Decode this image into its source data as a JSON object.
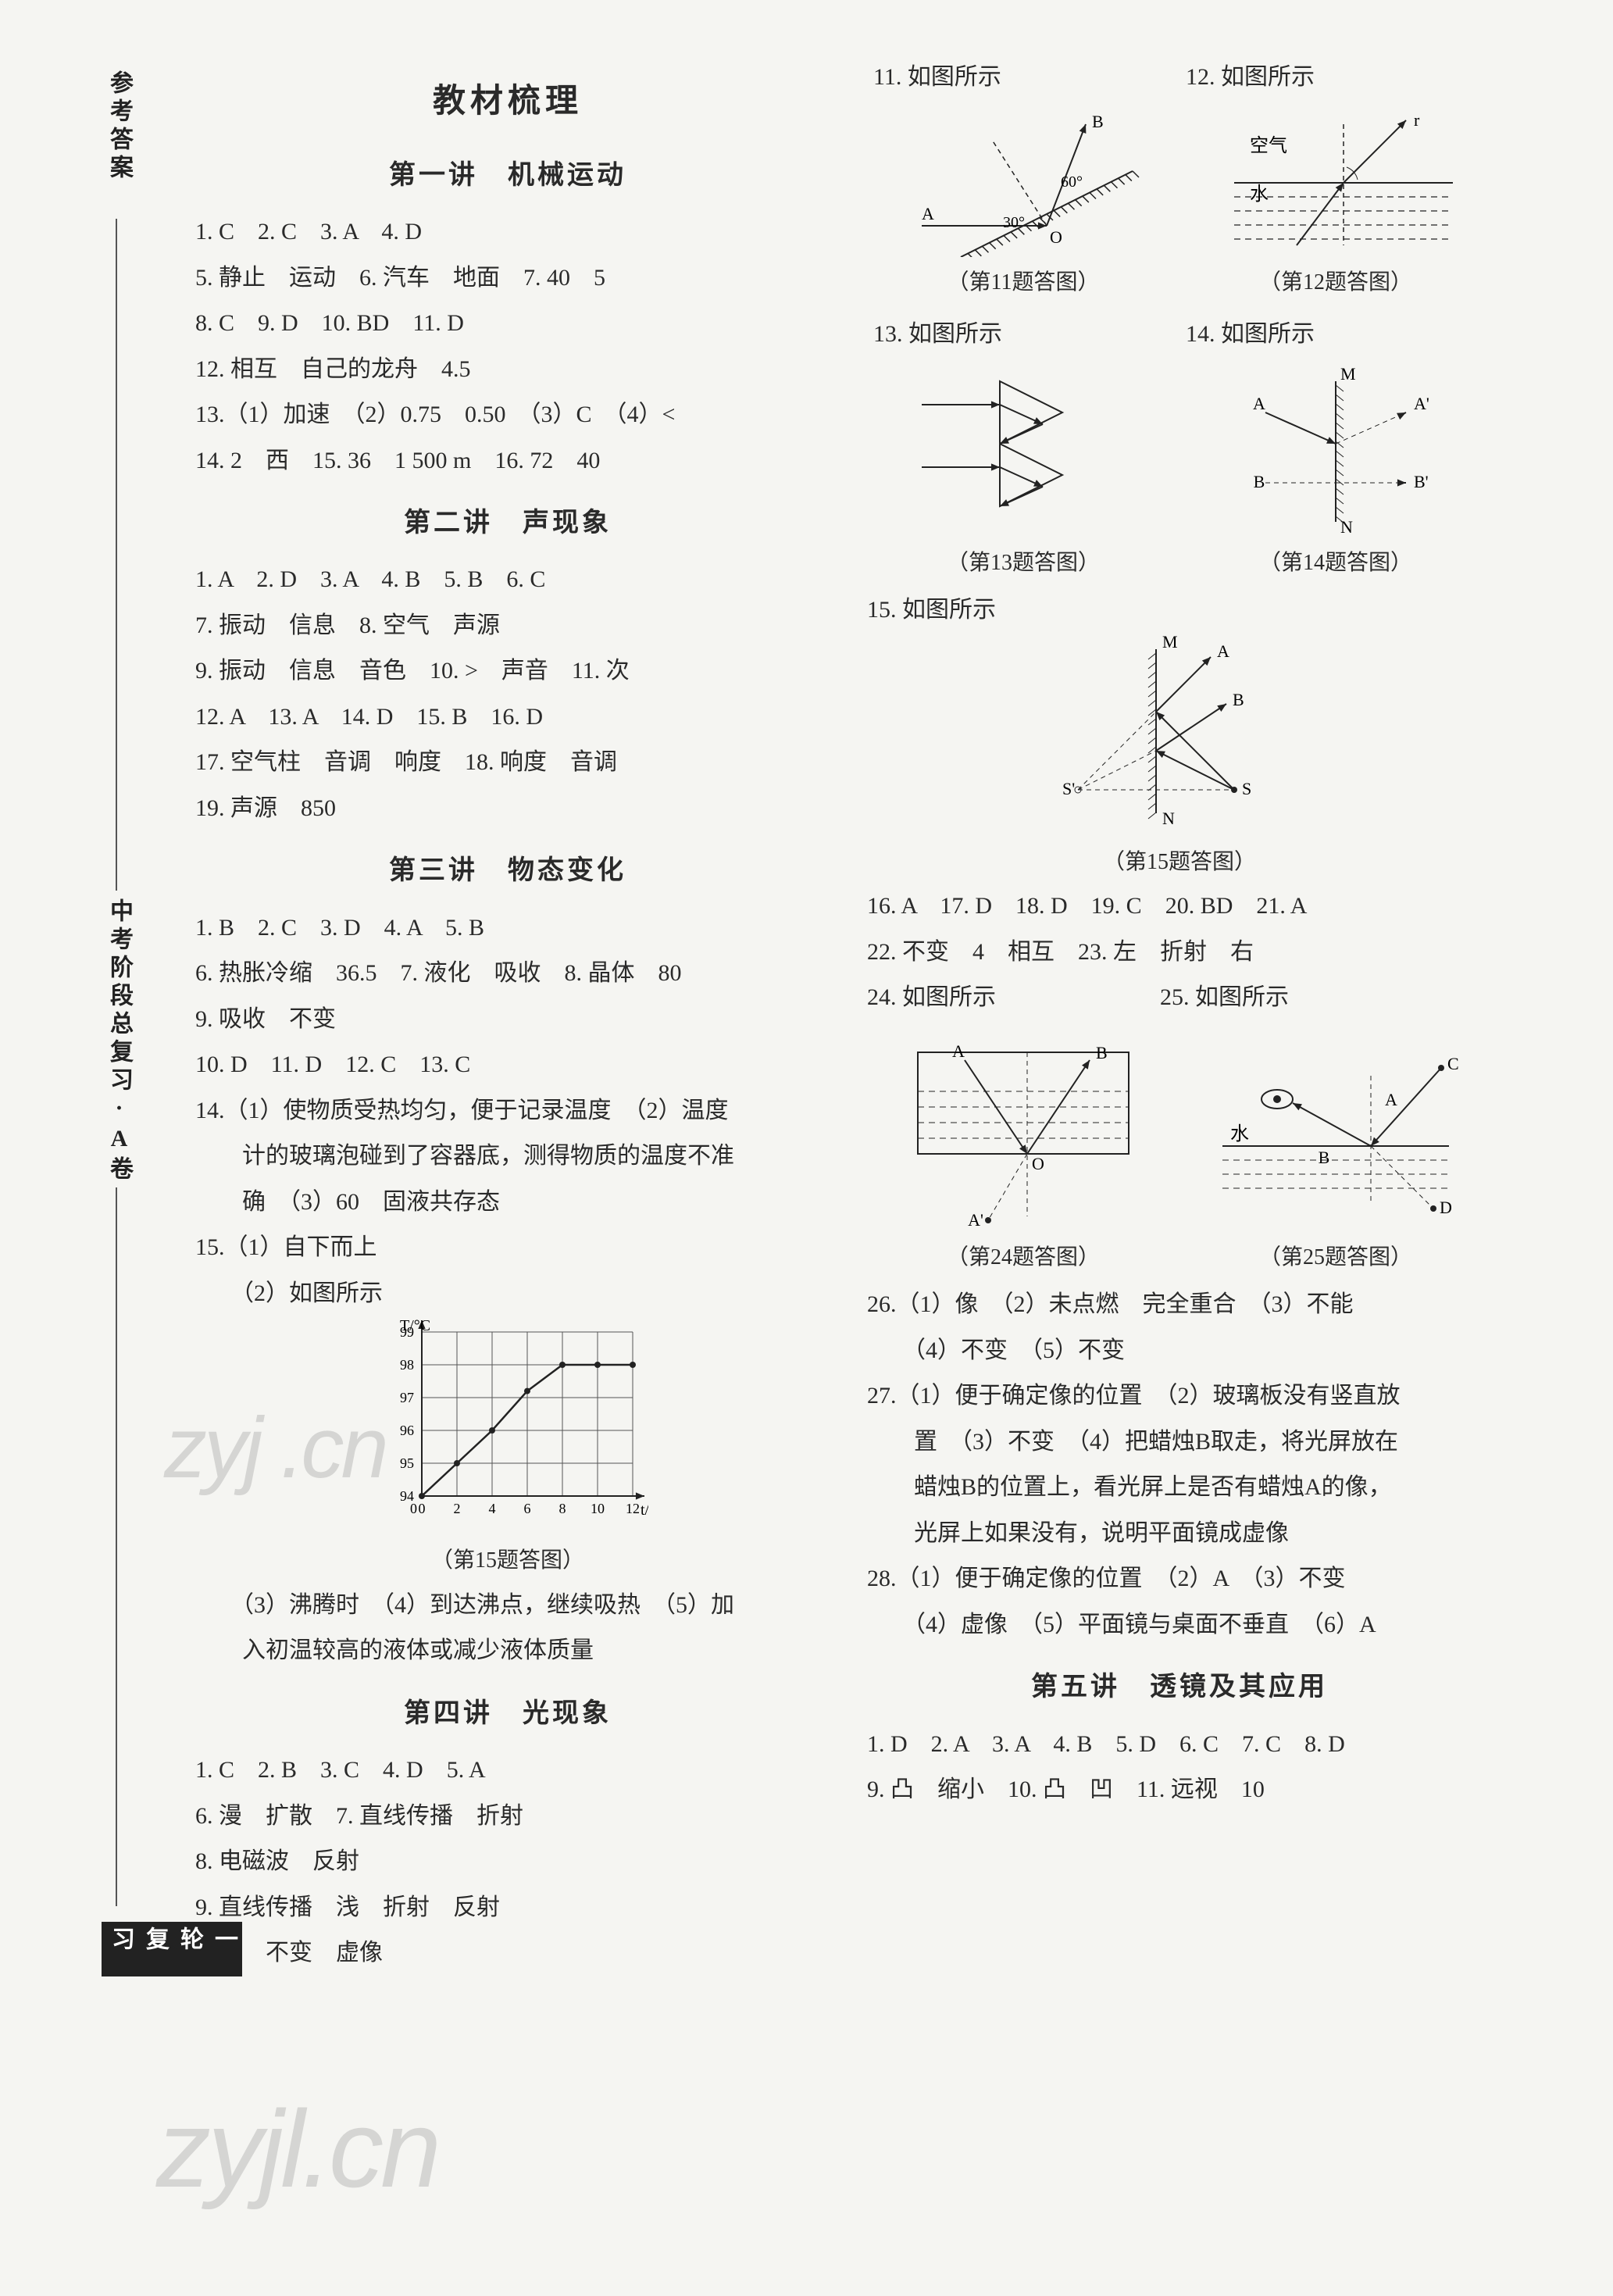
{
  "sidebar": {
    "top": "参考答案",
    "mid": "中考阶段总复习·A卷",
    "bot": "一轮复习"
  },
  "mainTitle": "教材梳理",
  "sections": {
    "s1": {
      "title": "第一讲　机械运动",
      "lines": [
        "1. C　2. C　3. A　4. D",
        "5. 静止　运动　6. 汽车　地面　7. 40　5",
        "8. C　9. D　10. BD　11. D",
        "12. 相互　自己的龙舟　4.5",
        "13.（1）加速　（2）0.75　0.50　（3）C　（4）<",
        "14. 2　西　15. 36　1 500 m　16. 72　40"
      ]
    },
    "s2": {
      "title": "第二讲　声现象",
      "lines": [
        "1. A　2. D　3. A　4. B　5. B　6. C",
        "7. 振动　信息　8. 空气　声源",
        "9. 振动　信息　音色　10. >　声音　11. 次",
        "12. A　13. A　14. D　15. B　16. D",
        "17. 空气柱　音调　响度　18. 响度　音调",
        "19. 声源　850"
      ]
    },
    "s3": {
      "title": "第三讲　物态变化",
      "lines": [
        "1. B　2. C　3. D　4. A　5. B",
        "6. 热胀冷缩　36.5　7. 液化　吸收　8. 晶体　80",
        "9. 吸收　不变",
        "10. D　11. D　12. C　13. C",
        "14.（1）使物质受热均匀，便于记录温度　（2）温度",
        "　　计的玻璃泡碰到了容器底，测得物质的温度不准",
        "　　确　（3）60　固液共存态",
        "15.（1）自下而上",
        "　　（2）如图所示"
      ],
      "fig15Caption": "（第15题答图）",
      "afterFig": [
        "　　（3）沸腾时　（4）到达沸点，继续吸热　（5）加",
        "　　入初温较高的液体或减少液体质量"
      ]
    },
    "s4": {
      "title": "第四讲　光现象",
      "lines": [
        "1. C　2. B　3. C　4. D　5. A",
        "6. 漫　扩散　7. 直线传播　折射",
        "8. 电磁波　反射",
        "9. 直线传播　浅　折射　反射",
        "10. 1　不变　虚像"
      ]
    },
    "s4r": {
      "l11": "11. 如图所示",
      "l12": "12. 如图所示",
      "cap11": "（第11题答图）",
      "cap12": "（第12题答图）",
      "l13": "13. 如图所示",
      "l14": "14. 如图所示",
      "cap13": "（第13题答图）",
      "cap14": "（第14题答图）",
      "l15": "15. 如图所示",
      "cap15": "（第15题答图）",
      "lines2": [
        "16. A　17. D　18. D　19. C　20. BD　21. A",
        "22. 不变　4　相互　23. 左　折射　右",
        "24. 如图所示　　　　　　　25. 如图所示"
      ],
      "cap24": "（第24题答图）",
      "cap25": "（第25题答图）",
      "lines3": [
        "26.（1）像　（2）未点燃　完全重合　（3）不能",
        "　　（4）不变　（5）不变",
        "27.（1）便于确定像的位置　（2）玻璃板没有竖直放",
        "　　置　（3）不变　（4）把蜡烛B取走，将光屏放在",
        "　　蜡烛B的位置上，看光屏上是否有蜡烛A的像，",
        "　　光屏上如果没有，说明平面镜成虚像",
        "28.（1）便于确定像的位置　（2）A　（3）不变",
        "　　（4）虚像　（5）平面镜与桌面不垂直　（6）A"
      ]
    },
    "s5": {
      "title": "第五讲　透镜及其应用",
      "lines": [
        "1. D　2. A　3. A　4. B　5. D　6. C　7. C　8. D",
        "9. 凸　缩小　10. 凸　凹　11. 远视　10"
      ]
    }
  },
  "chart15": {
    "type": "line",
    "xlabel": "t/min",
    "ylabel": "T/°C",
    "xlim": [
      0,
      12
    ],
    "ylim": [
      94,
      99
    ],
    "xticks": [
      0,
      2,
      4,
      6,
      8,
      10,
      12
    ],
    "yticks": [
      94,
      95,
      96,
      97,
      98,
      99
    ],
    "grid_color": "#555",
    "line_color": "#222",
    "background": "#ffffff",
    "points": [
      [
        0,
        94
      ],
      [
        2,
        95
      ],
      [
        4,
        96
      ],
      [
        6,
        97.2
      ],
      [
        8,
        98
      ],
      [
        10,
        98
      ],
      [
        12,
        98
      ]
    ]
  },
  "figStyle": {
    "stroke": "#222",
    "strokeWidth": 2,
    "hatchSpacing": 8,
    "dashPattern": "6,5",
    "labelFont": 22
  },
  "watermarks": {
    "w1": "zyj .cn",
    "w2": "zyjl.cn"
  }
}
